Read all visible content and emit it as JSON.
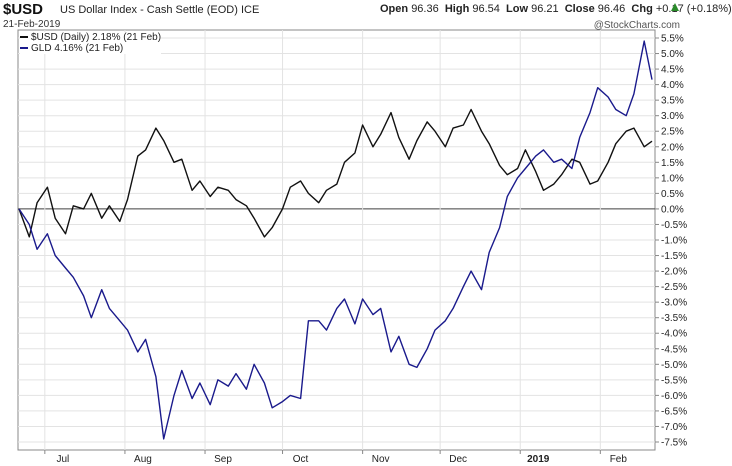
{
  "header": {
    "symbol": "$USD",
    "description": "US Dollar Index - Cash Settle (EOD)",
    "exchange": "ICE",
    "date": "21-Feb-2019",
    "quote": {
      "open_label": "Open",
      "open": "96.36",
      "high_label": "High",
      "high": "96.54",
      "low_label": "Low",
      "low": "96.21",
      "close_label": "Close",
      "close": "96.46",
      "chg_label": "Chg",
      "chg": "+0.17 (+0.18%)"
    },
    "credit": "@StockCharts.com"
  },
  "chart_data": {
    "type": "line",
    "x_range": [
      "2018-06-21",
      "2019-02-21"
    ],
    "ylim": [
      -7.5,
      5.5
    ],
    "ytick_step": 0.5,
    "grid": true,
    "legend_position": "top-left",
    "xticks": [
      {
        "label": "Jul",
        "date": "2018-07-01"
      },
      {
        "label": "Aug",
        "date": "2018-08-01"
      },
      {
        "label": "Sep",
        "date": "2018-09-01"
      },
      {
        "label": "Oct",
        "date": "2018-10-01"
      },
      {
        "label": "Nov",
        "date": "2018-11-01"
      },
      {
        "label": "Dec",
        "date": "2018-12-01"
      },
      {
        "label": "2019",
        "date": "2019-01-01",
        "bold": true
      },
      {
        "label": "Feb",
        "date": "2019-02-01"
      }
    ],
    "colors": {
      "usd": "#111111",
      "gld": "#1a1a8c",
      "zero": "#444444",
      "grid": "#e3e3e3"
    },
    "series": [
      {
        "key": "usd",
        "name": "$USD (Daily) 2.18% (21 Feb)",
        "points": [
          [
            "2018-06-21",
            0.0
          ],
          [
            "2018-06-25",
            -0.9
          ],
          [
            "2018-06-28",
            0.2
          ],
          [
            "2018-07-02",
            0.7
          ],
          [
            "2018-07-05",
            -0.3
          ],
          [
            "2018-07-09",
            -0.8
          ],
          [
            "2018-07-12",
            0.1
          ],
          [
            "2018-07-16",
            0.0
          ],
          [
            "2018-07-19",
            0.5
          ],
          [
            "2018-07-23",
            -0.3
          ],
          [
            "2018-07-26",
            0.1
          ],
          [
            "2018-07-30",
            -0.4
          ],
          [
            "2018-08-02",
            0.3
          ],
          [
            "2018-08-06",
            1.7
          ],
          [
            "2018-08-09",
            1.9
          ],
          [
            "2018-08-13",
            2.6
          ],
          [
            "2018-08-16",
            2.2
          ],
          [
            "2018-08-20",
            1.5
          ],
          [
            "2018-08-23",
            1.6
          ],
          [
            "2018-08-27",
            0.6
          ],
          [
            "2018-08-30",
            0.9
          ],
          [
            "2018-09-03",
            0.4
          ],
          [
            "2018-09-06",
            0.7
          ],
          [
            "2018-09-10",
            0.6
          ],
          [
            "2018-09-13",
            0.3
          ],
          [
            "2018-09-17",
            0.1
          ],
          [
            "2018-09-20",
            -0.3
          ],
          [
            "2018-09-24",
            -0.9
          ],
          [
            "2018-09-27",
            -0.6
          ],
          [
            "2018-10-01",
            0.0
          ],
          [
            "2018-10-04",
            0.7
          ],
          [
            "2018-10-08",
            0.9
          ],
          [
            "2018-10-11",
            0.5
          ],
          [
            "2018-10-15",
            0.2
          ],
          [
            "2018-10-18",
            0.6
          ],
          [
            "2018-10-22",
            0.8
          ],
          [
            "2018-10-25",
            1.5
          ],
          [
            "2018-10-29",
            1.8
          ],
          [
            "2018-11-01",
            2.7
          ],
          [
            "2018-11-05",
            2.0
          ],
          [
            "2018-11-08",
            2.4
          ],
          [
            "2018-11-12",
            3.1
          ],
          [
            "2018-11-15",
            2.3
          ],
          [
            "2018-11-19",
            1.6
          ],
          [
            "2018-11-22",
            2.2
          ],
          [
            "2018-11-26",
            2.8
          ],
          [
            "2018-11-29",
            2.5
          ],
          [
            "2018-12-03",
            2.0
          ],
          [
            "2018-12-06",
            2.6
          ],
          [
            "2018-12-10",
            2.7
          ],
          [
            "2018-12-13",
            3.2
          ],
          [
            "2018-12-17",
            2.5
          ],
          [
            "2018-12-20",
            2.1
          ],
          [
            "2018-12-24",
            1.4
          ],
          [
            "2018-12-27",
            1.1
          ],
          [
            "2018-12-31",
            1.3
          ],
          [
            "2019-01-03",
            1.9
          ],
          [
            "2019-01-07",
            1.2
          ],
          [
            "2019-01-10",
            0.6
          ],
          [
            "2019-01-14",
            0.8
          ],
          [
            "2019-01-17",
            1.1
          ],
          [
            "2019-01-21",
            1.6
          ],
          [
            "2019-01-24",
            1.5
          ],
          [
            "2019-01-28",
            0.8
          ],
          [
            "2019-01-31",
            0.9
          ],
          [
            "2019-02-04",
            1.5
          ],
          [
            "2019-02-07",
            2.1
          ],
          [
            "2019-02-11",
            2.5
          ],
          [
            "2019-02-14",
            2.6
          ],
          [
            "2019-02-18",
            2.0
          ],
          [
            "2019-02-21",
            2.18
          ]
        ]
      },
      {
        "key": "gld",
        "name": "GLD 4.16% (21 Feb)",
        "points": [
          [
            "2018-06-21",
            0.0
          ],
          [
            "2018-06-25",
            -0.5
          ],
          [
            "2018-06-28",
            -1.3
          ],
          [
            "2018-07-02",
            -0.8
          ],
          [
            "2018-07-05",
            -1.5
          ],
          [
            "2018-07-09",
            -1.9
          ],
          [
            "2018-07-12",
            -2.2
          ],
          [
            "2018-07-16",
            -2.8
          ],
          [
            "2018-07-19",
            -3.5
          ],
          [
            "2018-07-23",
            -2.6
          ],
          [
            "2018-07-26",
            -3.2
          ],
          [
            "2018-07-30",
            -3.6
          ],
          [
            "2018-08-02",
            -3.9
          ],
          [
            "2018-08-06",
            -4.6
          ],
          [
            "2018-08-09",
            -4.2
          ],
          [
            "2018-08-13",
            -5.4
          ],
          [
            "2018-08-16",
            -7.4
          ],
          [
            "2018-08-20",
            -6.0
          ],
          [
            "2018-08-23",
            -5.2
          ],
          [
            "2018-08-27",
            -6.1
          ],
          [
            "2018-08-30",
            -5.6
          ],
          [
            "2018-09-03",
            -6.3
          ],
          [
            "2018-09-06",
            -5.5
          ],
          [
            "2018-09-10",
            -5.7
          ],
          [
            "2018-09-13",
            -5.3
          ],
          [
            "2018-09-17",
            -5.8
          ],
          [
            "2018-09-20",
            -5.0
          ],
          [
            "2018-09-24",
            -5.6
          ],
          [
            "2018-09-27",
            -6.4
          ],
          [
            "2018-10-01",
            -6.2
          ],
          [
            "2018-10-04",
            -6.0
          ],
          [
            "2018-10-08",
            -6.1
          ],
          [
            "2018-10-11",
            -3.6
          ],
          [
            "2018-10-15",
            -3.6
          ],
          [
            "2018-10-18",
            -3.9
          ],
          [
            "2018-10-22",
            -3.2
          ],
          [
            "2018-10-25",
            -2.9
          ],
          [
            "2018-10-29",
            -3.7
          ],
          [
            "2018-11-01",
            -2.9
          ],
          [
            "2018-11-05",
            -3.4
          ],
          [
            "2018-11-08",
            -3.2
          ],
          [
            "2018-11-12",
            -4.6
          ],
          [
            "2018-11-15",
            -4.1
          ],
          [
            "2018-11-19",
            -5.0
          ],
          [
            "2018-11-22",
            -5.1
          ],
          [
            "2018-11-26",
            -4.5
          ],
          [
            "2018-11-29",
            -3.9
          ],
          [
            "2018-12-03",
            -3.6
          ],
          [
            "2018-12-06",
            -3.2
          ],
          [
            "2018-12-10",
            -2.5
          ],
          [
            "2018-12-13",
            -2.0
          ],
          [
            "2018-12-17",
            -2.6
          ],
          [
            "2018-12-20",
            -1.4
          ],
          [
            "2018-12-24",
            -0.6
          ],
          [
            "2018-12-27",
            0.4
          ],
          [
            "2018-12-31",
            1.0
          ],
          [
            "2019-01-03",
            1.3
          ],
          [
            "2019-01-07",
            1.7
          ],
          [
            "2019-01-10",
            1.9
          ],
          [
            "2019-01-14",
            1.5
          ],
          [
            "2019-01-17",
            1.6
          ],
          [
            "2019-01-21",
            1.3
          ],
          [
            "2019-01-24",
            2.3
          ],
          [
            "2019-01-28",
            3.1
          ],
          [
            "2019-01-31",
            3.9
          ],
          [
            "2019-02-04",
            3.6
          ],
          [
            "2019-02-07",
            3.2
          ],
          [
            "2019-02-11",
            3.0
          ],
          [
            "2019-02-14",
            3.7
          ],
          [
            "2019-02-18",
            5.4
          ],
          [
            "2019-02-21",
            4.16
          ]
        ]
      }
    ]
  }
}
